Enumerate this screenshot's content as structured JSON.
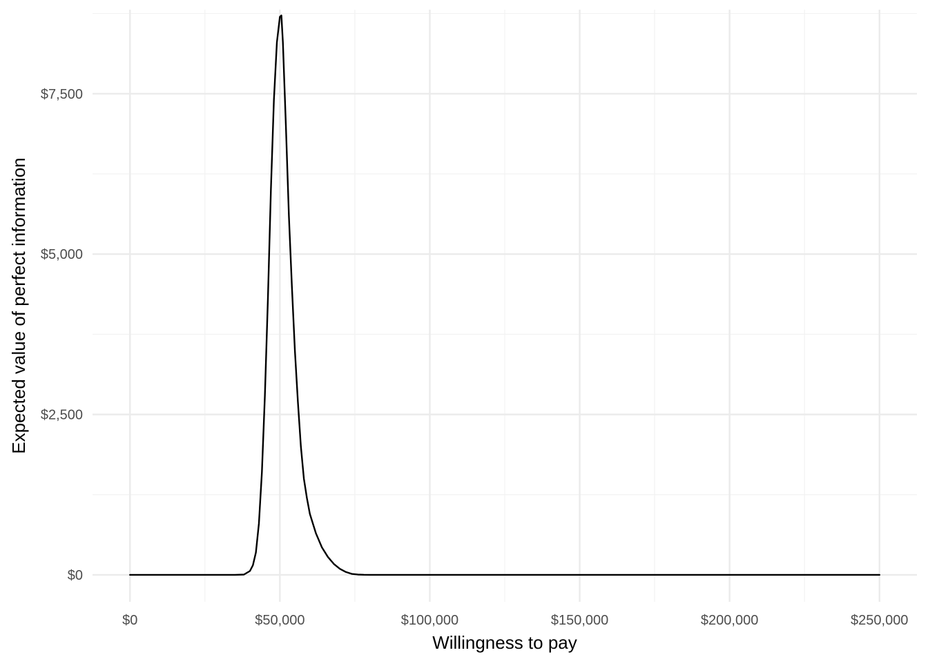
{
  "chart_data": {
    "type": "line",
    "title": "",
    "xlabel": "Willingness to pay",
    "ylabel": "Expected value of perfect information",
    "xlim": [
      -12500,
      262500
    ],
    "ylim": [
      -420,
      8810
    ],
    "grid": true,
    "x_ticks": [
      0,
      50000,
      100000,
      150000,
      200000,
      250000
    ],
    "x_tick_labels": [
      "$0",
      "$50,000",
      "$100,000",
      "$150,000",
      "$200,000",
      "$250,000"
    ],
    "x_minor_ticks": [
      25000,
      75000,
      125000,
      175000,
      225000
    ],
    "y_ticks": [
      0,
      2500,
      5000,
      7500
    ],
    "y_tick_labels": [
      "$0",
      "$2,500",
      "$5,000",
      "$7,500"
    ],
    "y_minor_ticks": [
      1250,
      3750,
      6250,
      8750
    ],
    "colors": {
      "line": "#000000",
      "grid_major": "#ebebeb",
      "grid_minor": "#f2f2f2",
      "tick_text": "#4d4d4d"
    },
    "series": [
      {
        "x": [
          0,
          5000,
          10000,
          15000,
          20000,
          25000,
          30000,
          35000,
          38000,
          40000,
          41000,
          42000,
          43000,
          44000,
          45000,
          46000,
          47000,
          48000,
          49000,
          50000,
          50500,
          51000,
          52000,
          53000,
          54000,
          55000,
          56000,
          57000,
          58000,
          59000,
          60000,
          62000,
          64000,
          66000,
          68000,
          70000,
          72000,
          74000,
          76000,
          78000,
          80000,
          85000,
          90000,
          100000,
          120000,
          150000,
          175000,
          200000,
          225000,
          250000
        ],
        "y": [
          0,
          0,
          0,
          0,
          0,
          0,
          0,
          0,
          5,
          60,
          150,
          350,
          800,
          1600,
          2800,
          4300,
          6000,
          7400,
          8300,
          8700,
          8720,
          8300,
          7000,
          5600,
          4500,
          3500,
          2700,
          2000,
          1500,
          1200,
          950,
          650,
          430,
          280,
          170,
          95,
          45,
          15,
          5,
          1,
          0,
          0,
          0,
          0,
          0,
          0,
          0,
          0,
          0,
          0
        ]
      }
    ]
  }
}
